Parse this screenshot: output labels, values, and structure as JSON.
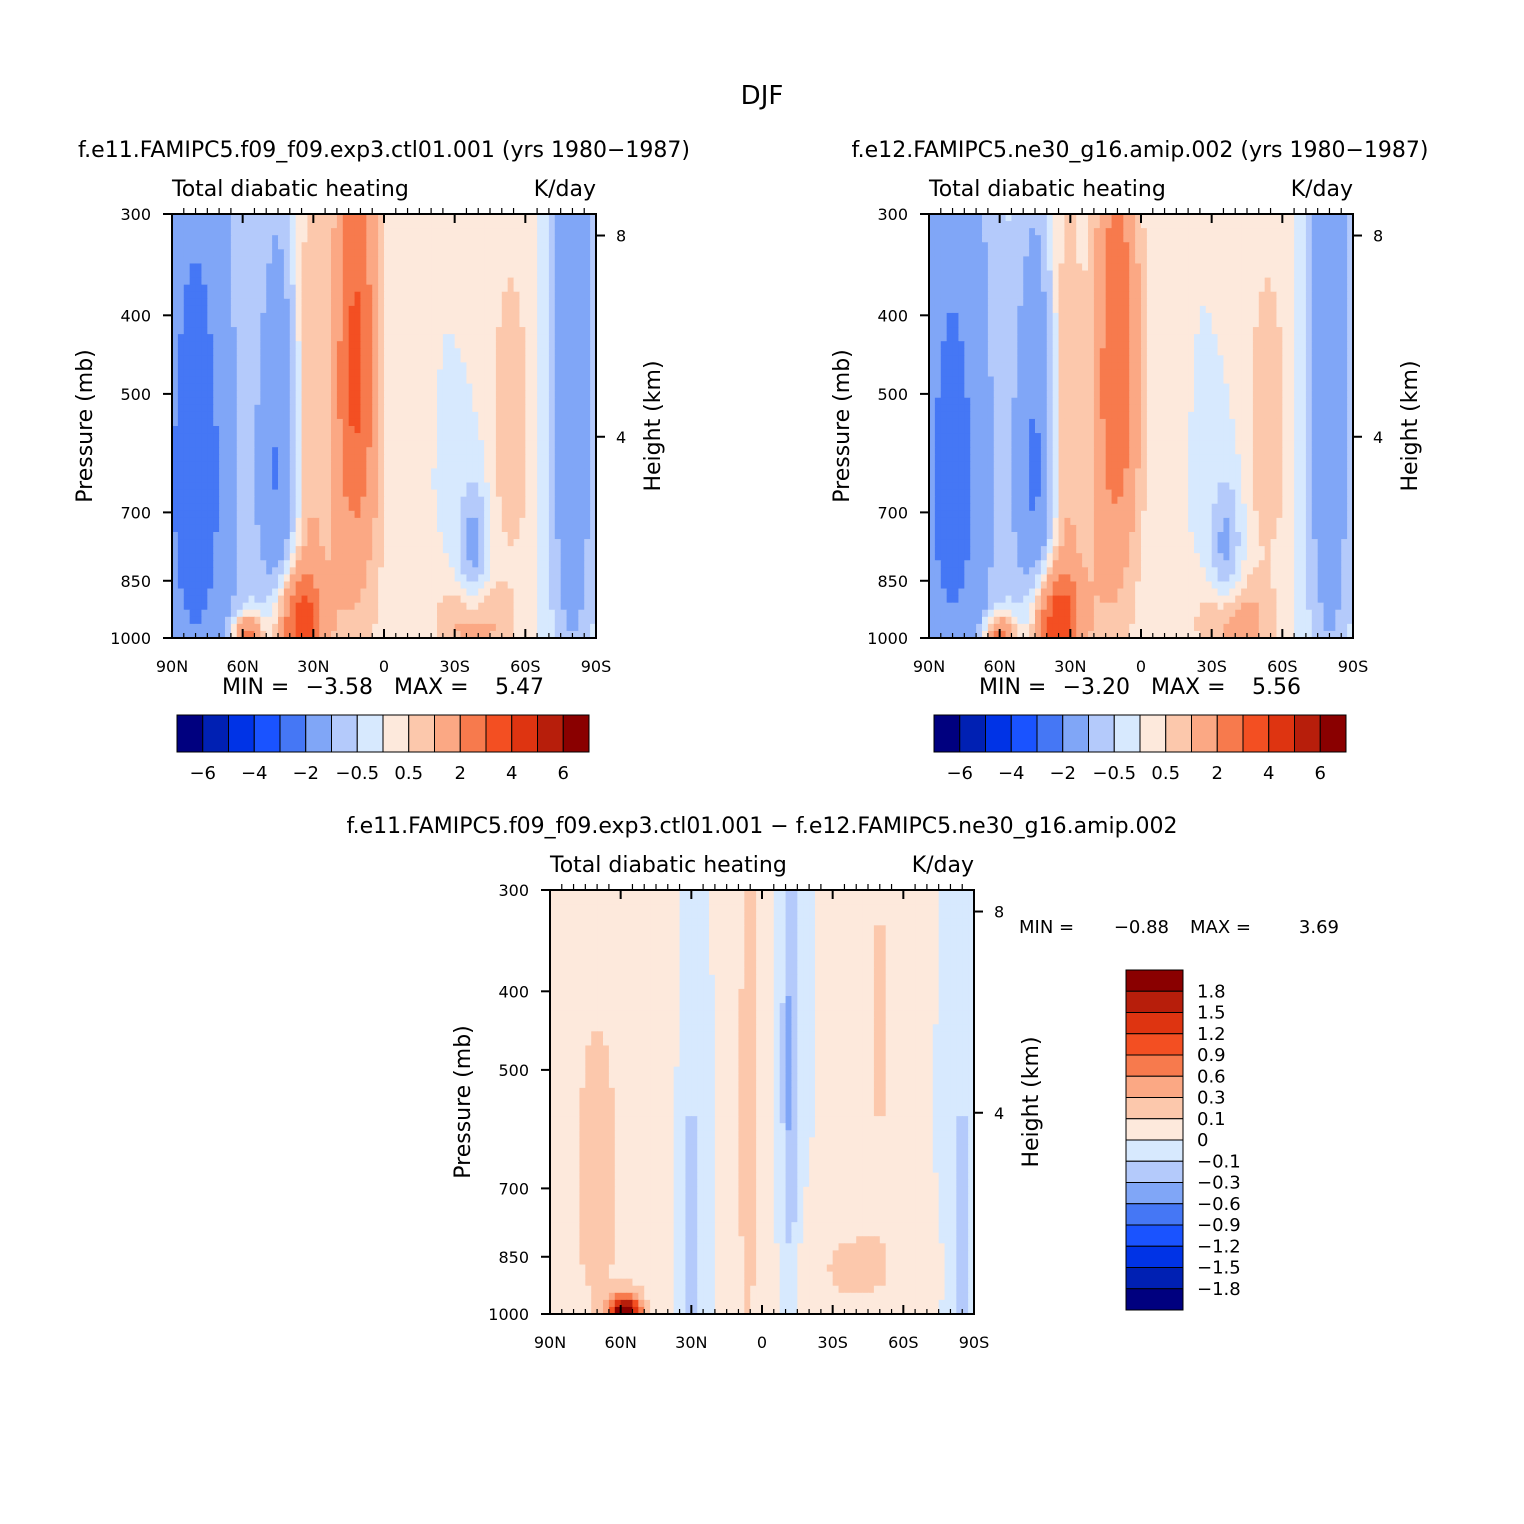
{
  "figure": {
    "title": "DJF"
  },
  "colors": {
    "full": [
      "#00007f",
      "#0020b3",
      "#0033e6",
      "#1a53ff",
      "#4577f5",
      "#80a6f7",
      "#b4cafb",
      "#d7e9fe",
      "#fde9dc",
      "#fcc8ac",
      "#fba884",
      "#f77a4d",
      "#f34f22",
      "#de3411",
      "#b71e0b",
      "#8a0000"
    ],
    "diff": [
      "#00007f",
      "#0020b3",
      "#0033e6",
      "#1a53ff",
      "#4577f5",
      "#80a6f7",
      "#b4cafb",
      "#d7e9fe",
      "#fde9dc",
      "#fcc8ac",
      "#fba884",
      "#f77a4d",
      "#f34f22",
      "#de3411",
      "#b71e0b",
      "#8a0000"
    ]
  },
  "chart_data": [
    {
      "id": "panel-1",
      "type": "contour",
      "title": "f.e11.FAMIPC5.f09_f09.exp3.ctl01.001 (yrs 1980-1987)",
      "left_label": "Total diabatic heating",
      "right_label": "K/day",
      "ylabel": "Pressure (mb)",
      "y2label": "Height (km)",
      "x_ticks": [
        "90N",
        "60N",
        "30N",
        "0",
        "30S",
        "60S",
        "90S"
      ],
      "x_values": [
        90,
        60,
        30,
        0,
        -30,
        -60,
        -90
      ],
      "y_ticks": [
        300,
        400,
        500,
        700,
        850,
        1000
      ],
      "y2_ticks": [
        8,
        4
      ],
      "min_label": "MIN =",
      "min": "-3.58",
      "max_label": "MAX =",
      "max": "5.47",
      "levels": [
        -6,
        -5,
        -4,
        -3,
        -2,
        -1,
        -0.5,
        0,
        0.5,
        1,
        2,
        3,
        4,
        5,
        6
      ],
      "colorbar_labels": [
        "-6",
        "-4",
        "-2",
        "-0.5",
        "0.5",
        "2",
        "4",
        "6"
      ],
      "colorbar_label_levels": [
        -6,
        -4,
        -2,
        -0.5,
        0.5,
        2,
        4,
        6
      ],
      "field_max": 5.47,
      "field_min": -3.58,
      "features": [
        {
          "lat": 80,
          "p": 650,
          "w": 18,
          "h": 600,
          "v": -2.6
        },
        {
          "lat": 45,
          "p": 620,
          "w": 9,
          "h": 350,
          "v": -2.0
        },
        {
          "lat": 12,
          "p": 440,
          "w": 9,
          "h": 280,
          "v": 2.9
        },
        {
          "lat": 14,
          "p": 800,
          "w": 14,
          "h": 400,
          "v": 0.9
        },
        {
          "lat": 32,
          "p": 560,
          "w": 6,
          "h": 420,
          "v": 1.0
        },
        {
          "lat": 36,
          "p": 960,
          "w": 10,
          "h": 140,
          "v": 3.6
        },
        {
          "lat": 58,
          "p": 990,
          "w": 6,
          "h": 50,
          "v": 3.0
        },
        {
          "lat": -38,
          "p": 790,
          "w": 7,
          "h": 160,
          "v": -1.4
        },
        {
          "lat": -54,
          "p": 560,
          "w": 10,
          "h": 260,
          "v": 0.9
        },
        {
          "lat": -38,
          "p": 960,
          "w": 16,
          "h": 120,
          "v": 1.4
        },
        {
          "lat": -80,
          "p": 450,
          "w": 10,
          "h": 700,
          "v": -1.8
        }
      ]
    },
    {
      "id": "panel-2",
      "type": "contour",
      "title": "f.e12.FAMIPC5.ne30_g16.amip.002 (yrs 1980-1987)",
      "left_label": "Total diabatic heating",
      "right_label": "K/day",
      "ylabel": "Pressure (mb)",
      "y2label": "Height (km)",
      "x_ticks": [
        "90N",
        "60N",
        "30N",
        "0",
        "30S",
        "60S",
        "90S"
      ],
      "x_values": [
        90,
        60,
        30,
        0,
        -30,
        -60,
        -90
      ],
      "y_ticks": [
        300,
        400,
        500,
        700,
        850,
        1000
      ],
      "y2_ticks": [
        8,
        4
      ],
      "min_label": "MIN =",
      "min": "-3.20",
      "max_label": "MAX =",
      "max": "5.56",
      "levels": [
        -6,
        -5,
        -4,
        -3,
        -2,
        -1,
        -0.5,
        0,
        0.5,
        1,
        2,
        3,
        4,
        5,
        6
      ],
      "colorbar_labels": [
        "-6",
        "-4",
        "-2",
        "-0.5",
        "0.5",
        "2",
        "4",
        "6"
      ],
      "colorbar_label_levels": [
        -6,
        -4,
        -2,
        -0.5,
        0.5,
        2,
        4,
        6
      ],
      "field_max": 5.56,
      "field_min": -3.2,
      "features": [
        {
          "lat": 80,
          "p": 650,
          "w": 18,
          "h": 600,
          "v": -2.4
        },
        {
          "lat": 45,
          "p": 620,
          "w": 9,
          "h": 350,
          "v": -2.1
        },
        {
          "lat": 10,
          "p": 440,
          "w": 9,
          "h": 280,
          "v": 2.6
        },
        {
          "lat": 14,
          "p": 800,
          "w": 14,
          "h": 400,
          "v": 0.9
        },
        {
          "lat": 32,
          "p": 560,
          "w": 6,
          "h": 420,
          "v": 1.0
        },
        {
          "lat": 36,
          "p": 960,
          "w": 10,
          "h": 140,
          "v": 3.8
        },
        {
          "lat": 60,
          "p": 990,
          "w": 6,
          "h": 50,
          "v": 3.0
        },
        {
          "lat": -36,
          "p": 790,
          "w": 7,
          "h": 160,
          "v": -1.3
        },
        {
          "lat": -54,
          "p": 560,
          "w": 10,
          "h": 260,
          "v": 0.9
        },
        {
          "lat": -40,
          "p": 960,
          "w": 16,
          "h": 120,
          "v": 1.5
        },
        {
          "lat": -80,
          "p": 450,
          "w": 10,
          "h": 700,
          "v": -1.8
        }
      ]
    },
    {
      "id": "panel-diff",
      "type": "contour",
      "title": "f.e11.FAMIPC5.f09_f09.exp3.ctl01.001 - f.e12.FAMIPC5.ne30_g16.amip.002",
      "left_label": "Total diabatic heating",
      "right_label": "K/day",
      "ylabel": "Pressure (mb)",
      "y2label": "Height (km)",
      "x_ticks": [
        "90N",
        "60N",
        "30N",
        "0",
        "30S",
        "60S",
        "90S"
      ],
      "x_values": [
        90,
        60,
        30,
        0,
        -30,
        -60,
        -90
      ],
      "y_ticks": [
        300,
        400,
        500,
        700,
        850,
        1000
      ],
      "y2_ticks": [
        8,
        4
      ],
      "min_label": "MIN =",
      "min": "-0.88",
      "max_label": "MAX =",
      "max": "3.69",
      "levels": [
        -1.8,
        -1.5,
        -1.2,
        -0.9,
        -0.6,
        -0.3,
        -0.1,
        0,
        0.1,
        0.3,
        0.6,
        0.9,
        1.2,
        1.5,
        1.8
      ],
      "colorbar_labels": [
        "1.8",
        "1.5",
        "1.2",
        "0.9",
        "0.6",
        "0.3",
        "0.1",
        "0",
        "-0.1",
        "-0.3",
        "-0.6",
        "-0.9",
        "-1.2",
        "-1.5",
        "-1.8"
      ],
      "field_max": 3.69,
      "field_min": -0.88,
      "features": [
        {
          "lat": 58,
          "p": 995,
          "w": 6,
          "h": 40,
          "v": 2.4
        },
        {
          "lat": 6,
          "p": 600,
          "w": 4,
          "h": 600,
          "v": 0.18
        },
        {
          "lat": 70,
          "p": 700,
          "w": 20,
          "h": 600,
          "v": 0.12
        },
        {
          "lat": -12,
          "p": 500,
          "w": 3,
          "h": 300,
          "v": -0.35
        },
        {
          "lat": 30,
          "p": 800,
          "w": 4,
          "h": 300,
          "v": -0.2
        },
        {
          "lat": -40,
          "p": 880,
          "w": 18,
          "h": 100,
          "v": 0.15
        },
        {
          "lat": -50,
          "p": 450,
          "w": 8,
          "h": 300,
          "v": 0.12
        },
        {
          "lat": -85,
          "p": 800,
          "w": 4,
          "h": 300,
          "v": -0.2
        }
      ]
    }
  ]
}
